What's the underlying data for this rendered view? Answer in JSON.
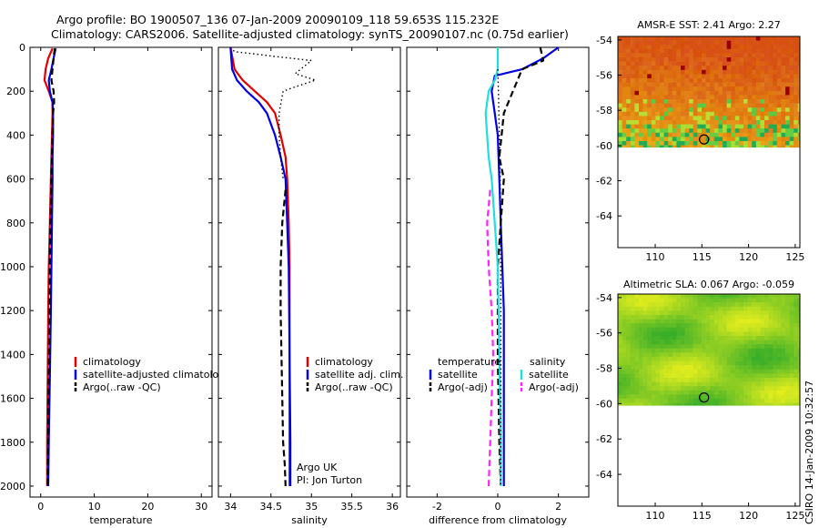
{
  "header": {
    "title_line1": "Argo profile: BO 1900507_136 07-Jan-2009 20090109_118 59.653S 115.232E",
    "title_line2": "Climatology: CARS2006. Satellite-adjusted climatology: synTS_20090107.nc (0.75d earlier)"
  },
  "credit": "CSIRO 14-Jan-2009 10:32:57",
  "colors": {
    "climatology": "#e00000",
    "satellite": "#0000e0",
    "argo": "#000000",
    "sat_salinity": "#22dddd",
    "argo_salinity_diff": "#ff22ff"
  },
  "chart_data": [
    {
      "type": "line",
      "panel": "temperature",
      "xlabel": "temperature",
      "xlim": [
        -2,
        32
      ],
      "ylim": [
        2050,
        0
      ],
      "xticks": [
        "0",
        "10",
        "20",
        "30"
      ],
      "yticks": [
        "0",
        "200",
        "400",
        "600",
        "800",
        "1000",
        "1200",
        "1400",
        "1600",
        "1800",
        "2000"
      ],
      "legend": [
        "climatology",
        "satellite-adjusted climatology",
        "Argo(..raw -QC)"
      ],
      "series": [
        {
          "name": "climatology",
          "color": "#e00000",
          "style": "solid",
          "x": [
            2.2,
            1.4,
            0.9,
            0.7,
            1.5,
            2.2,
            2.2,
            2.1,
            2.0,
            1.9,
            1.7,
            1.5,
            1.4,
            1.3,
            1.2,
            1.2
          ],
          "y": [
            5,
            50,
            100,
            150,
            200,
            250,
            300,
            400,
            500,
            600,
            800,
            1000,
            1200,
            1500,
            1800,
            2000
          ]
        },
        {
          "name": "satellite-adjusted climatology",
          "color": "#0000e0",
          "style": "solid",
          "x": [
            2.8,
            2.4,
            2.0,
            1.5,
            1.7,
            2.2,
            2.3,
            2.3,
            2.2,
            2.2,
            2.1,
            2.0,
            1.9,
            1.7,
            1.5,
            1.4
          ],
          "y": [
            5,
            50,
            100,
            150,
            200,
            250,
            300,
            400,
            500,
            600,
            800,
            1000,
            1200,
            1500,
            1800,
            2000
          ]
        },
        {
          "name": "Argo(..raw -QC)",
          "color": "#000000",
          "style": "dash",
          "x": [
            2.6,
            2.4,
            2.2,
            2.0,
            2.4,
            2.5,
            2.3,
            2.2,
            2.1,
            2.0,
            1.8,
            1.7,
            1.6,
            1.5,
            1.4,
            1.3
          ],
          "y": [
            5,
            50,
            100,
            150,
            200,
            250,
            300,
            400,
            500,
            600,
            800,
            1000,
            1200,
            1500,
            1800,
            2000
          ]
        }
      ]
    },
    {
      "type": "line",
      "panel": "salinity",
      "xlabel": "salinity",
      "xlim": [
        33.85,
        36.1
      ],
      "ylim": [
        2050,
        0
      ],
      "xticks": [
        "34",
        "34.5",
        "35",
        "35.5",
        "36"
      ],
      "legend": [
        "climatology",
        "satellite adj. clim.",
        "Argo(..raw -QC)"
      ],
      "annotation": [
        "Argo UK",
        "PI: Jon Turton"
      ],
      "series": [
        {
          "name": "climatology",
          "color": "#e00000",
          "style": "solid",
          "x": [
            34.0,
            34.05,
            34.15,
            34.3,
            34.45,
            34.55,
            34.62,
            34.68,
            34.7,
            34.72,
            34.73,
            34.73,
            34.73,
            34.73
          ],
          "y": [
            0,
            100,
            150,
            200,
            250,
            300,
            400,
            500,
            600,
            800,
            1000,
            1400,
            1800,
            2000
          ]
        },
        {
          "name": "satellite adj. clim.",
          "color": "#0000e0",
          "style": "solid",
          "x": [
            34.0,
            34.02,
            34.08,
            34.2,
            34.35,
            34.45,
            34.55,
            34.62,
            34.68,
            34.7,
            34.72,
            34.73,
            34.74,
            34.74
          ],
          "y": [
            0,
            100,
            150,
            200,
            250,
            300,
            400,
            500,
            600,
            800,
            1000,
            1400,
            1800,
            2000
          ]
        },
        {
          "name": "Argo(..raw -QC)",
          "color": "#000000",
          "style": "dash",
          "x": [
            34.68,
            34.64,
            34.62,
            34.62,
            34.63,
            34.64,
            34.65,
            34.67,
            34.68
          ],
          "y": [
            650,
            800,
            1000,
            1200,
            1400,
            1600,
            1800,
            1900,
            2000
          ]
        },
        {
          "name": "Argo upper (dotted)",
          "color": "#000000",
          "style": "dot",
          "x": [
            34.0,
            34.05,
            34.3,
            34.5,
            34.75,
            35.0,
            34.8,
            35.05,
            34.8,
            34.65,
            34.6,
            34.6,
            34.62,
            34.65
          ],
          "y": [
            0,
            20,
            30,
            40,
            50,
            60,
            120,
            150,
            180,
            200,
            300,
            400,
            500,
            600
          ]
        }
      ]
    },
    {
      "type": "line",
      "panel": "difference",
      "xlabel": "difference from climatology",
      "xlim": [
        -3,
        3
      ],
      "ylim": [
        2050,
        0
      ],
      "xticks": [
        "-2",
        "0",
        "2"
      ],
      "legend_temperature": {
        "header": "temperature",
        "items": [
          "satellite",
          "Argo(-adj)"
        ]
      },
      "legend_salinity": {
        "header": "salinity",
        "items": [
          "satellite",
          "Argo(-adj)"
        ]
      },
      "series": [
        {
          "name": "temperature satellite",
          "color": "#0000e0",
          "style": "solid",
          "x": [
            2.0,
            1.5,
            0.8,
            -0.1,
            -0.2,
            -0.1,
            0.0,
            0.05,
            0.1,
            0.15,
            0.2,
            0.2,
            0.2,
            0.2
          ],
          "y": [
            0,
            50,
            100,
            130,
            200,
            300,
            400,
            600,
            800,
            1000,
            1200,
            1500,
            1800,
            2000
          ]
        },
        {
          "name": "temperature Argo(-adj)",
          "color": "#000000",
          "style": "dash",
          "x": [
            1.4,
            1.5,
            0.8,
            0.5,
            0.2,
            0.05,
            0.2,
            0.1,
            0.0,
            0.0,
            0.05,
            0.1
          ],
          "y": [
            0,
            60,
            100,
            200,
            300,
            500,
            600,
            800,
            1000,
            1400,
            1800,
            2000
          ]
        },
        {
          "name": "salinity satellite",
          "color": "#22dddd",
          "style": "solid",
          "x": [
            0.0,
            0.0,
            -0.1,
            -0.3,
            -0.4,
            -0.35,
            -0.3,
            -0.2,
            -0.1,
            0.0,
            0.05,
            0.1,
            0.1
          ],
          "y": [
            0,
            100,
            150,
            200,
            300,
            400,
            500,
            600,
            800,
            1000,
            1400,
            1800,
            2000
          ]
        },
        {
          "name": "salinity Argo(-adj)",
          "color": "#ff22ff",
          "style": "dash",
          "x": [
            -0.25,
            -0.35,
            -0.3,
            -0.2,
            -0.15,
            -0.2,
            -0.25,
            -0.3
          ],
          "y": [
            650,
            800,
            1000,
            1200,
            1400,
            1600,
            1800,
            2000
          ]
        },
        {
          "name": "dotted reference",
          "color": "#000000",
          "style": "dot",
          "x": [
            0.0,
            0.02,
            0.05,
            0.08,
            0.1,
            0.1,
            0.1
          ],
          "y": [
            100,
            200,
            400,
            600,
            1000,
            1500,
            2000
          ]
        }
      ]
    },
    {
      "type": "heatmap",
      "panel": "sst_map",
      "title": "AMSR-E SST: 2.41 Argo: 2.27",
      "xlim": [
        106,
        125.5
      ],
      "ylim": [
        -65.8,
        -53.8
      ],
      "xticks": [
        "110",
        "115",
        "120",
        "125"
      ],
      "yticks": [
        "-54",
        "-56",
        "-58",
        "-60",
        "-62",
        "-64"
      ],
      "data_lat_min": -60.1,
      "argo_position": {
        "lon": 115.232,
        "lat": -59.653
      }
    },
    {
      "type": "heatmap",
      "panel": "sla_map",
      "title": "Altimetric SLA: 0.067 Argo: -0.059",
      "xlim": [
        106,
        125.5
      ],
      "ylim": [
        -65.8,
        -53.8
      ],
      "xticks": [
        "110",
        "115",
        "120",
        "125"
      ],
      "yticks": [
        "-54",
        "-56",
        "-58",
        "-60",
        "-62",
        "-64"
      ],
      "data_lat_min": -60.1,
      "argo_position": {
        "lon": 115.232,
        "lat": -59.653
      }
    }
  ]
}
